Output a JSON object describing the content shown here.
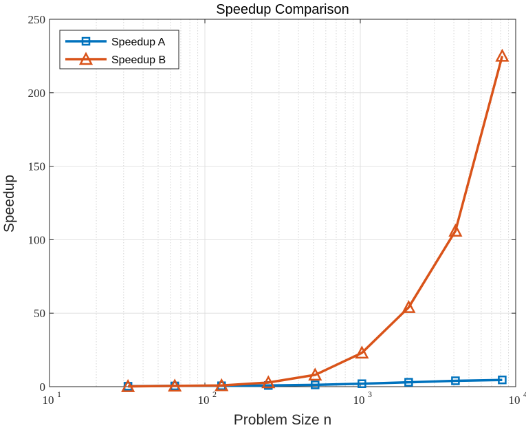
{
  "chart_data": {
    "type": "line",
    "title": "Speedup Comparison",
    "xlabel": "Problem Size n",
    "ylabel": "Speedup",
    "xscale": "log",
    "xlim": [
      10,
      10000
    ],
    "ylim": [
      0,
      250
    ],
    "x_ticks": [
      {
        "value": 10,
        "base": "10",
        "exp": "1"
      },
      {
        "value": 100,
        "base": "10",
        "exp": "2"
      },
      {
        "value": 1000,
        "base": "10",
        "exp": "3"
      },
      {
        "value": 10000,
        "base": "10",
        "exp": "4"
      }
    ],
    "y_ticks": [
      {
        "value": 0,
        "label": "0"
      },
      {
        "value": 50,
        "label": "50"
      },
      {
        "value": 100,
        "label": "100"
      },
      {
        "value": 150,
        "label": "150"
      },
      {
        "value": 200,
        "label": "200"
      },
      {
        "value": 250,
        "label": "250"
      }
    ],
    "grid": true,
    "minor_grid": true,
    "legend_position": "top-left",
    "x": [
      32,
      64,
      128,
      256,
      512,
      1024,
      2048,
      4096,
      8192
    ],
    "series": [
      {
        "name": "Speedup A",
        "color": "#0072BD",
        "marker": "square",
        "values": [
          0.3,
          0.5,
          0.6,
          0.8,
          1.2,
          2.0,
          3.0,
          4.0,
          4.6
        ]
      },
      {
        "name": "Speedup B",
        "color": "#D95319",
        "marker": "triangle",
        "values": [
          0.2,
          0.5,
          0.8,
          2.8,
          8.0,
          23.0,
          54.0,
          106.0,
          225.0
        ]
      }
    ]
  }
}
